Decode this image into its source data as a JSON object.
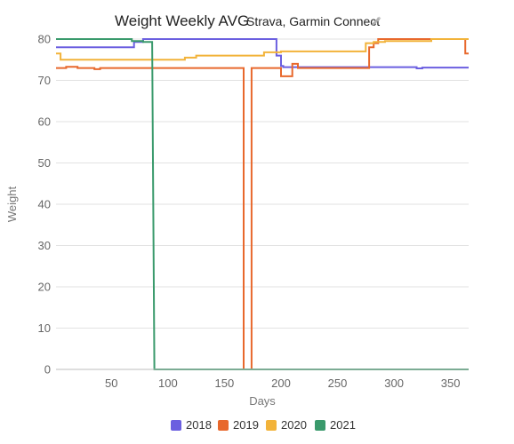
{
  "header": {
    "title": "Weight Weekly AVG",
    "subtitle": "Strava, Garmin Connect",
    "edit_icon": "pencil-icon"
  },
  "colors": {
    "2018": "#6b5fe0",
    "2019": "#e8682c",
    "2020": "#f2b33a",
    "2021": "#3a9a6c",
    "grid": "#e2e2e2",
    "axis": "#bdbdbd"
  },
  "chart_data": {
    "type": "line",
    "xlabel": "Days",
    "ylabel": "Weight",
    "xlim": [
      1,
      366
    ],
    "ylim": [
      0,
      80
    ],
    "x_ticks": [
      50,
      100,
      150,
      200,
      250,
      300,
      350
    ],
    "y_ticks": [
      0,
      10,
      20,
      30,
      40,
      50,
      60,
      70,
      80
    ],
    "grid": true,
    "legend_position": "bottom",
    "series": [
      {
        "name": "2018",
        "x": [
          1,
          70,
          70,
          78,
          78,
          196,
          196,
          200,
          200,
          202,
          202,
          212,
          212,
          320,
          320,
          325,
          325,
          366
        ],
        "y": [
          78,
          78,
          79.3,
          79.3,
          80,
          80,
          76,
          76,
          73.5,
          73.5,
          73.2,
          73.2,
          73.2,
          73.2,
          72.9,
          72.9,
          73.1,
          73.1
        ]
      },
      {
        "name": "2019",
        "x": [
          1,
          10,
          10,
          20,
          20,
          35,
          35,
          40,
          40,
          167,
          167,
          168,
          168,
          173,
          173,
          174,
          174,
          200,
          200,
          210,
          210,
          215,
          215,
          278,
          278,
          282,
          282,
          286,
          286,
          290,
          290,
          335,
          335,
          363,
          363,
          366
        ],
        "y": [
          73,
          73,
          73.3,
          73.3,
          73,
          73,
          72.7,
          72.7,
          73,
          73,
          0,
          0,
          0,
          0,
          0,
          0,
          73,
          73,
          71,
          71,
          74,
          74,
          73,
          73,
          78,
          78,
          79,
          79,
          80,
          80,
          80,
          80,
          80,
          80,
          76.5,
          76.5
        ]
      },
      {
        "name": "2020",
        "x": [
          1,
          5,
          5,
          115,
          115,
          125,
          125,
          185,
          185,
          200,
          200,
          275,
          275,
          282,
          282,
          292,
          292,
          333,
          333,
          345,
          345,
          366
        ],
        "y": [
          76.5,
          76.5,
          75,
          75,
          75.5,
          75.5,
          76,
          76,
          76.8,
          76.8,
          77,
          77,
          79,
          79,
          79.3,
          79.3,
          79.5,
          79.5,
          80,
          80,
          80,
          80
        ]
      },
      {
        "name": "2021",
        "x": [
          1,
          68,
          68,
          78,
          78,
          86,
          86,
          88,
          88,
          366
        ],
        "y": [
          80,
          80,
          79.5,
          79.5,
          79.3,
          79.3,
          79.3,
          0,
          0,
          0
        ]
      }
    ]
  }
}
